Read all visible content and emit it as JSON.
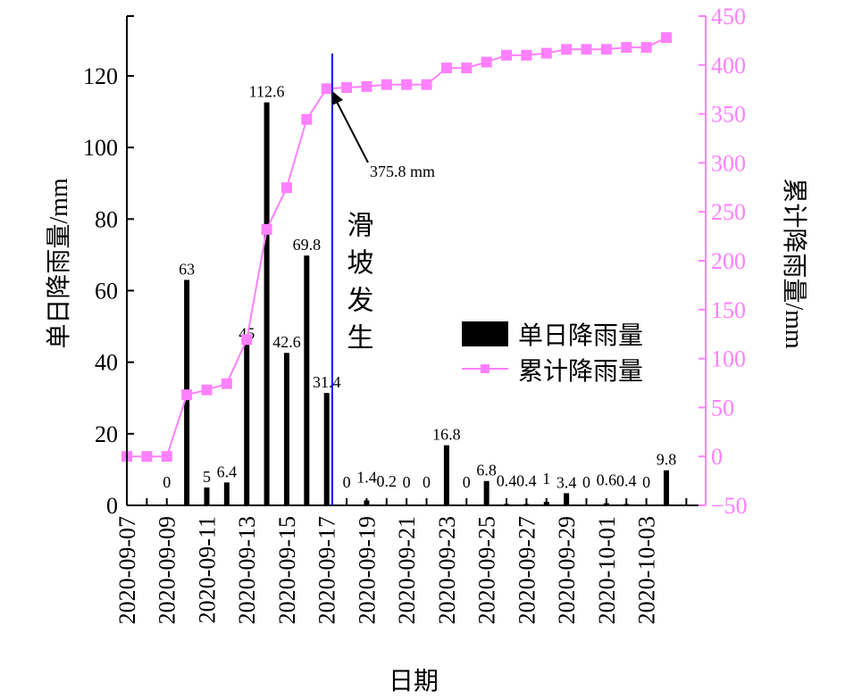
{
  "chart_data": {
    "type": "bar+line",
    "xlabel": "日期",
    "ylabel_left": "单日降雨量/mm",
    "ylabel_right": "累计降雨量/mm",
    "ylim_left": [
      0,
      120
    ],
    "yticks_left": [
      0,
      20,
      40,
      60,
      80,
      100,
      120
    ],
    "ylim_right": [
      -50,
      450
    ],
    "yticks_right": [
      -50,
      0,
      50,
      100,
      150,
      200,
      250,
      300,
      350,
      400,
      450
    ],
    "categories": [
      "2020-09-07",
      "2020-09-08",
      "2020-09-09",
      "2020-09-10",
      "2020-09-11",
      "2020-09-12",
      "2020-09-13",
      "2020-09-14",
      "2020-09-15",
      "2020-09-16",
      "2020-09-17",
      "2020-09-18",
      "2020-09-19",
      "2020-09-20",
      "2020-09-21",
      "2020-09-22",
      "2020-09-23",
      "2020-09-24",
      "2020-09-25",
      "2020-09-26",
      "2020-09-27",
      "2020-09-28",
      "2020-09-29",
      "2020-09-30",
      "2020-10-01",
      "2020-10-02",
      "2020-10-03",
      "2020-10-04"
    ],
    "xtick_labels": [
      "2020-09-07",
      "2020-09-09",
      "2020-09-11",
      "2020-09-13",
      "2020-09-15",
      "2020-09-17",
      "2020-09-19",
      "2020-09-21",
      "2020-09-23",
      "2020-09-25",
      "2020-09-27",
      "2020-09-29",
      "2020-10-01",
      "2020-10-03"
    ],
    "series": [
      {
        "name": "单日降雨量",
        "type": "bar",
        "axis": "left",
        "color": "#000000",
        "values": [
          null,
          null,
          0,
          63,
          5,
          6.4,
          45,
          112.6,
          42.6,
          69.8,
          31.4,
          0,
          1.4,
          0.2,
          0,
          0,
          16.8,
          0,
          6.8,
          0.4,
          0.4,
          1,
          3.4,
          0,
          0.6,
          0.4,
          0,
          9.8
        ]
      },
      {
        "name": "累计降雨量",
        "type": "line",
        "axis": "right",
        "color": "#ff80ff",
        "values": [
          0,
          0,
          0,
          63,
          68,
          74.4,
          119.4,
          232,
          274.6,
          344.4,
          375.8,
          377,
          378,
          380,
          380,
          380,
          397,
          397,
          403,
          410,
          410,
          412,
          416,
          416,
          416,
          418,
          418,
          428
        ]
      }
    ],
    "annotations": {
      "event_text": "滑坡发生",
      "event_date": "2020-09-17",
      "event_line_color": "#0000ff",
      "arrow_label": "375.8 mm"
    },
    "legend": {
      "placement": "center-right",
      "entries": [
        "单日降雨量",
        "累计降雨量"
      ]
    }
  }
}
